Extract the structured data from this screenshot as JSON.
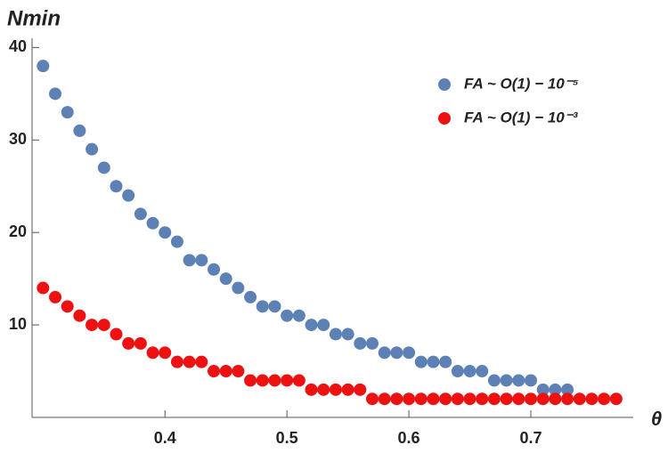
{
  "chart_data": {
    "type": "scatter",
    "x_label": "θ",
    "y_label": "Nmin",
    "xlim": [
      0.291,
      0.784
    ],
    "ylim": [
      0,
      41
    ],
    "xticks": [
      0.4,
      0.5,
      0.6,
      0.7
    ],
    "yticks": [
      10,
      20,
      30,
      40
    ],
    "legend": "upper right",
    "series": [
      {
        "name": "FA ~ O(1) − 10⁻⁵",
        "color": "#5e81b5",
        "x": [
          0.3,
          0.31,
          0.32,
          0.33,
          0.34,
          0.35,
          0.36,
          0.37,
          0.38,
          0.39,
          0.4,
          0.41,
          0.42,
          0.43,
          0.44,
          0.45,
          0.46,
          0.47,
          0.48,
          0.49,
          0.5,
          0.51,
          0.52,
          0.53,
          0.54,
          0.55,
          0.56,
          0.57,
          0.58,
          0.59,
          0.6,
          0.61,
          0.62,
          0.63,
          0.64,
          0.65,
          0.66,
          0.67,
          0.68,
          0.69,
          0.7,
          0.71,
          0.72,
          0.73
        ],
        "values": [
          38,
          35,
          33,
          31,
          29,
          27,
          25,
          24,
          22,
          21,
          20,
          19,
          17,
          17,
          16,
          15,
          14,
          13,
          12,
          12,
          11,
          11,
          10,
          10,
          9,
          9,
          8,
          8,
          7,
          7,
          7,
          6,
          6,
          6,
          5,
          5,
          5,
          4,
          4,
          4,
          4,
          3,
          3,
          3
        ]
      },
      {
        "name": "FA ~ O(1) − 10⁻³",
        "color": "#ee1111",
        "x": [
          0.3,
          0.31,
          0.32,
          0.33,
          0.34,
          0.35,
          0.36,
          0.37,
          0.38,
          0.39,
          0.4,
          0.41,
          0.42,
          0.43,
          0.44,
          0.45,
          0.46,
          0.47,
          0.48,
          0.49,
          0.5,
          0.51,
          0.52,
          0.53,
          0.54,
          0.55,
          0.56,
          0.57,
          0.58,
          0.59,
          0.6,
          0.61,
          0.62,
          0.63,
          0.64,
          0.65,
          0.66,
          0.67,
          0.68,
          0.69,
          0.7,
          0.71,
          0.72,
          0.73,
          0.74,
          0.75,
          0.76,
          0.77
        ],
        "values": [
          14,
          13,
          12,
          11,
          10,
          10,
          9,
          8,
          8,
          7,
          7,
          6,
          6,
          6,
          5,
          5,
          5,
          4,
          4,
          4,
          4,
          4,
          3,
          3,
          3,
          3,
          3,
          2,
          2,
          2,
          2,
          2,
          2,
          2,
          2,
          2,
          2,
          2,
          2,
          2,
          2,
          2,
          2,
          2,
          2,
          2,
          2,
          2
        ]
      }
    ]
  }
}
